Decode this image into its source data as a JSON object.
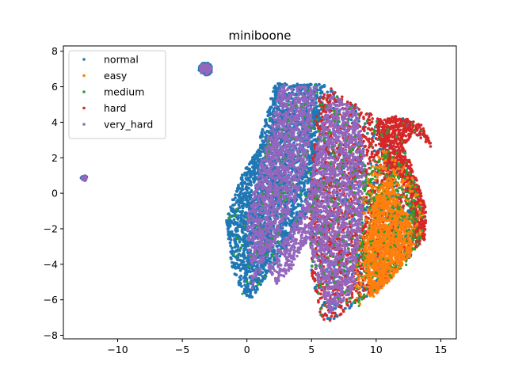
{
  "chart_data": {
    "type": "scatter",
    "title": "miniboone",
    "xlabel": "",
    "ylabel": "",
    "xlim": [
      -14.2,
      16.2
    ],
    "ylim": [
      -8.2,
      8.3
    ],
    "xticks": [
      -10,
      -5,
      0,
      5,
      10,
      15
    ],
    "yticks": [
      -8,
      -6,
      -4,
      -2,
      0,
      2,
      4,
      6,
      8
    ],
    "grid": false,
    "legend_position": "upper-left",
    "series": [
      {
        "name": "normal",
        "color": "#1f77b4"
      },
      {
        "name": "easy",
        "color": "#ff7f0e"
      },
      {
        "name": "medium",
        "color": "#2ca02c"
      },
      {
        "name": "hard",
        "color": "#d62728"
      },
      {
        "name": "very_hard",
        "color": "#9467bd"
      }
    ]
  }
}
